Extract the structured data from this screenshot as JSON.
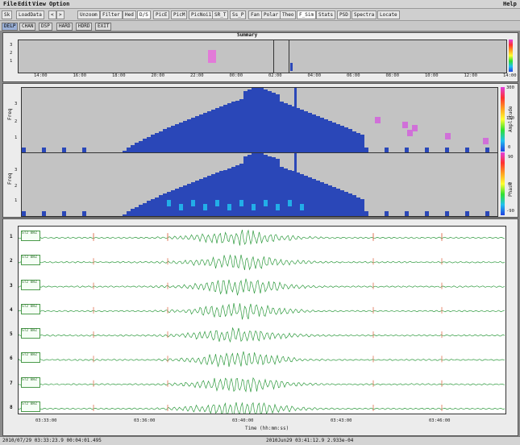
{
  "menu": {
    "items": [
      "File",
      "Edit",
      "View",
      "Option"
    ],
    "help": "Help"
  },
  "toolbar": {
    "items": [
      "Sk",
      "LoadData",
      "Unzoom",
      "Filter",
      "Hed",
      "D/S",
      "PicE",
      "PicM",
      "PicNoi1",
      "SR_T",
      "Ss_P",
      "Fan",
      "Polar",
      "Theo",
      "F_Sim",
      "Stats",
      "PSD",
      "Spectra",
      "Locate"
    ]
  },
  "tabs": {
    "items": [
      "DELP",
      "CHAN",
      "DSP",
      "HARD",
      "HDRD",
      "EXIT"
    ],
    "selected": "DELP"
  },
  "summary": {
    "title": "Summary",
    "time_ticks": [
      "14:00",
      "16:00",
      "18:00",
      "20:00",
      "22:00",
      "00:00",
      "02:00",
      "04:00",
      "06:00",
      "08:00",
      "10:00",
      "12:00",
      "14:00"
    ],
    "y_ticks": [
      "3",
      "2",
      "1"
    ]
  },
  "spectro": {
    "y_label": "Freq",
    "y_ticks_top": [
      "3",
      "2",
      "1"
    ],
    "y_ticks_bottom": [
      "3",
      "2",
      "1"
    ],
    "colorbar_top_label": "Amplitude",
    "colorbar_bottom_label": "Phase",
    "colorbar_top_ticks": [
      "300",
      "100",
      "0"
    ],
    "colorbar_bottom_ticks": [
      "90",
      "0",
      "-90"
    ]
  },
  "waveforms": {
    "channel_numbers": [
      "1",
      "2",
      "3",
      "4",
      "5",
      "6",
      "7",
      "8"
    ],
    "labels": [
      "ST2 BHZ",
      "ST2 BHZ",
      "ST2 BHZ",
      "ST2 BHZ",
      "ST2 BHZ",
      "ST2 BHZ",
      "ST2 BHZ",
      "ST2 BHZ"
    ],
    "time_ticks": [
      "03:33:00",
      "03:36:00",
      "03:40:00",
      "03:43:00",
      "03:46:00"
    ],
    "x_label": "Time (hh:mm:ss)"
  },
  "status": {
    "left": "2010/07/29 03:33:23.9   00:04:01.495",
    "right": "2010Jun29 03:41:12.9   2.933e-04"
  },
  "colors": {
    "trace": "#2e9a3e",
    "pick": "#e07050",
    "cell_dark": "#2a47b8",
    "cell_light": "#22aee8",
    "cell_magenta": "#d070d8",
    "plot_bg": "#c3c3c3"
  }
}
